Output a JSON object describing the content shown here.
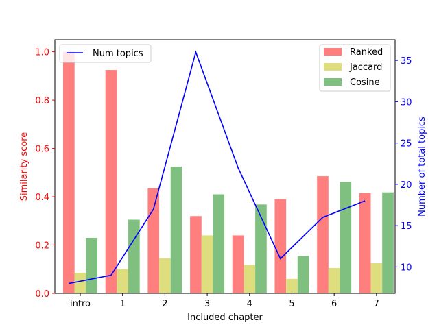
{
  "chart_data": {
    "type": "bar",
    "xlabel": "Included chapter",
    "ylabel_left": "Similarity score",
    "ylabel_right": "Number of total topics",
    "categories": [
      "intro",
      "1",
      "2",
      "3",
      "4",
      "5",
      "6",
      "7"
    ],
    "ylim_left": [
      0,
      1.05
    ],
    "yticks_left": [
      "0.0",
      "0.2",
      "0.4",
      "0.6",
      "0.8",
      "1.0"
    ],
    "ylim_right": [
      6.8,
      37.5
    ],
    "yticks_right": [
      "10",
      "15",
      "20",
      "25",
      "30",
      "35"
    ],
    "series": [
      {
        "name": "Ranked",
        "color": "#ff7f7f",
        "values": [
          1.0,
          0.925,
          0.435,
          0.32,
          0.24,
          0.39,
          0.485,
          0.415
        ]
      },
      {
        "name": "Jaccard",
        "color": "#dede7f",
        "values": [
          0.085,
          0.1,
          0.145,
          0.24,
          0.118,
          0.06,
          0.105,
          0.125
        ]
      },
      {
        "name": "Cosine",
        "color": "#7fbf7f",
        "values": [
          0.23,
          0.305,
          0.525,
          0.41,
          0.368,
          0.155,
          0.462,
          0.418
        ]
      }
    ],
    "line_series": {
      "name": "Num topics",
      "color": "#0000ff",
      "values": [
        8,
        9,
        17,
        36,
        22,
        11,
        16,
        18
      ]
    },
    "legend_bars": "top-right",
    "legend_line": "top-left",
    "grid": false,
    "left_axis_color": "#ff0000",
    "right_axis_color": "#0000ff"
  }
}
